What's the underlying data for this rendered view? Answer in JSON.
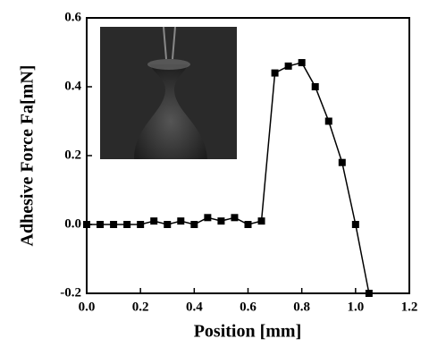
{
  "chart_data": {
    "type": "line",
    "x_label": "Position [mm]",
    "y_label": "Adhesive Force Fa[mN]",
    "x": [
      0,
      0.05,
      0.1,
      0.15,
      0.2,
      0.25,
      0.3,
      0.35,
      0.4,
      0.45,
      0.5,
      0.55,
      0.6,
      0.65,
      0.7,
      0.75,
      0.8,
      0.85,
      0.9,
      0.95,
      1.0,
      1.05
    ],
    "series": [
      {
        "color": "#000000",
        "values": [
          0,
          0,
          0,
          0,
          0,
          0.01,
          0,
          0.01,
          0,
          0.02,
          0.01,
          0.02,
          0,
          0.01,
          0.44,
          0.46,
          0.47,
          0.4,
          0.3,
          0.18,
          0.0,
          -0.2
        ]
      }
    ],
    "xlim": [
      0,
      1.2
    ],
    "xticks": [
      {
        "value": 0,
        "label": "0.0"
      },
      0.2,
      0.4,
      0.6,
      0.8,
      {
        "value": 1,
        "label": "1.0"
      },
      1.2
    ],
    "ylim": [
      -0.2,
      0.6
    ],
    "yticks": [
      -0.2,
      {
        "value": 0,
        "label": "0.0"
      },
      0.2,
      0.4,
      0.6
    ]
  }
}
